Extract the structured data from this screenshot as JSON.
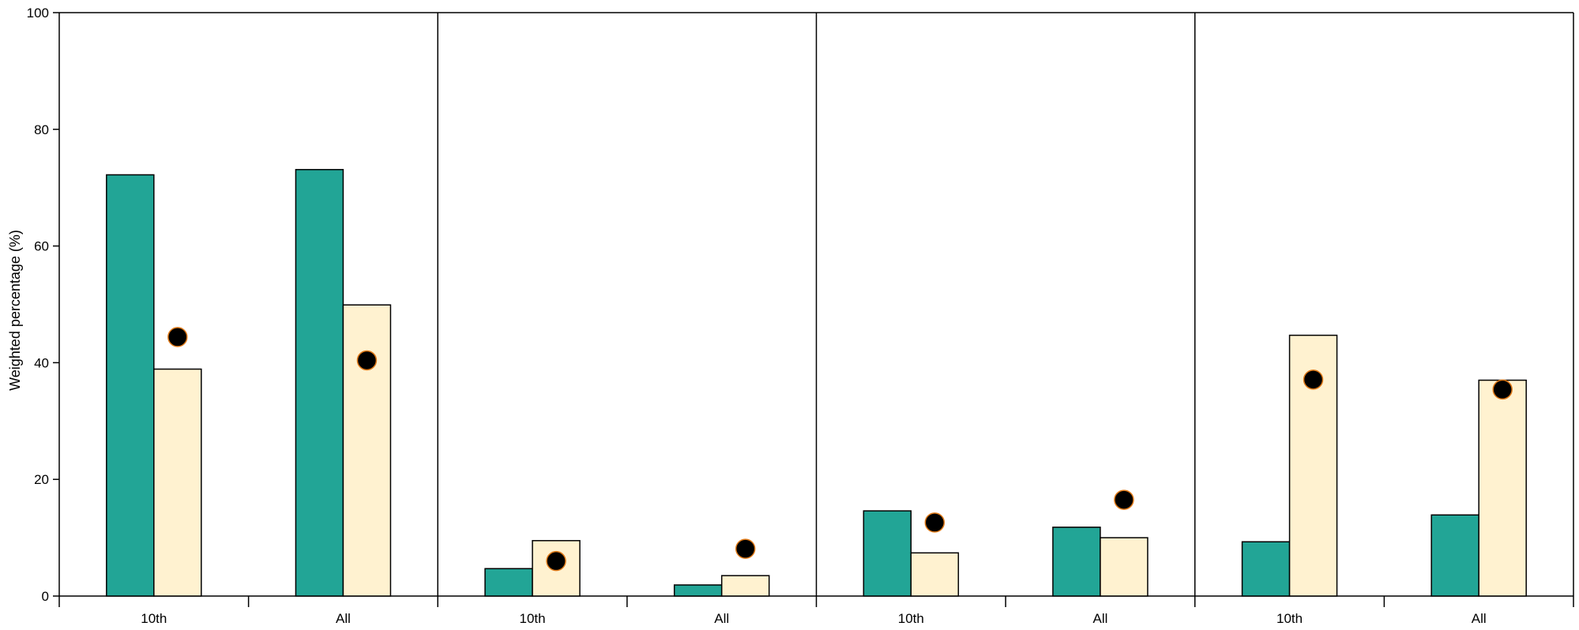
{
  "chart_data": {
    "type": "bar",
    "ylabel": "Weighted percentage (%)",
    "ylim": [
      0,
      100
    ],
    "yticks": [
      0,
      20,
      40,
      60,
      80,
      100
    ],
    "grid": false,
    "legend": "none",
    "colors": {
      "series_a": "#22a596",
      "series_b": "#fff2d0",
      "marker_fill": "#000000",
      "marker_stroke": "#e07b1a"
    },
    "panels": [
      {
        "categories": [
          "10th",
          "All"
        ],
        "series_a": [
          72.2,
          73.1
        ],
        "series_b": [
          38.9,
          49.9
        ],
        "markers": [
          44.4,
          40.4
        ]
      },
      {
        "categories": [
          "10th",
          "All"
        ],
        "series_a": [
          4.7,
          1.9
        ],
        "series_b": [
          9.5,
          3.5
        ],
        "markers": [
          6.0,
          8.1
        ]
      },
      {
        "categories": [
          "10th",
          "All"
        ],
        "series_a": [
          14.6,
          11.8
        ],
        "series_b": [
          7.4,
          10.0
        ],
        "markers": [
          12.6,
          16.5
        ]
      },
      {
        "categories": [
          "10th",
          "All"
        ],
        "series_a": [
          9.3,
          13.9
        ],
        "series_b": [
          44.7,
          37.0
        ],
        "markers": [
          37.1,
          35.4
        ]
      }
    ]
  }
}
